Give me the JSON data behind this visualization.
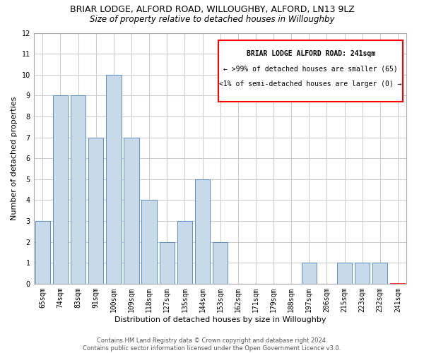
{
  "title_line1": "BRIAR LODGE, ALFORD ROAD, WILLOUGHBY, ALFORD, LN13 9LZ",
  "title_line2": "Size of property relative to detached houses in Willoughby",
  "xlabel": "Distribution of detached houses by size in Willoughby",
  "ylabel": "Number of detached properties",
  "categories": [
    "65sqm",
    "74sqm",
    "83sqm",
    "91sqm",
    "100sqm",
    "109sqm",
    "118sqm",
    "127sqm",
    "135sqm",
    "144sqm",
    "153sqm",
    "162sqm",
    "171sqm",
    "179sqm",
    "188sqm",
    "197sqm",
    "206sqm",
    "215sqm",
    "223sqm",
    "232sqm",
    "241sqm"
  ],
  "values": [
    3,
    9,
    9,
    7,
    10,
    7,
    4,
    2,
    3,
    5,
    2,
    0,
    0,
    0,
    0,
    1,
    0,
    1,
    1,
    1,
    0
  ],
  "highlight_index": 20,
  "bar_color": "#c8d9ea",
  "bar_edge_color": "#5b8fc9",
  "highlight_bar_color": "#c8d9ea",
  "highlight_bar_edge_color": "red",
  "annotation_box_edge_color": "red",
  "annotation_text_line1": "BRIAR LODGE ALFORD ROAD: 241sqm",
  "annotation_text_line2": "← >99% of detached houses are smaller (65)",
  "annotation_text_line3": "<1% of semi-detached houses are larger (0) →",
  "ylim": [
    0,
    12
  ],
  "yticks": [
    0,
    1,
    2,
    3,
    4,
    5,
    6,
    7,
    8,
    9,
    10,
    11,
    12
  ],
  "footer_line1": "Contains HM Land Registry data © Crown copyright and database right 2024.",
  "footer_line2": "Contains public sector information licensed under the Open Government Licence v3.0.",
  "background_color": "#ffffff",
  "plot_bg_color": "#ffffff",
  "grid_color": "#cccccc",
  "fig_width": 6.0,
  "fig_height": 5.0,
  "title_fontsize": 9,
  "subtitle_fontsize": 8.5,
  "annotation_fontsize": 7,
  "axis_label_fontsize": 8,
  "tick_fontsize": 7,
  "footer_fontsize": 6
}
